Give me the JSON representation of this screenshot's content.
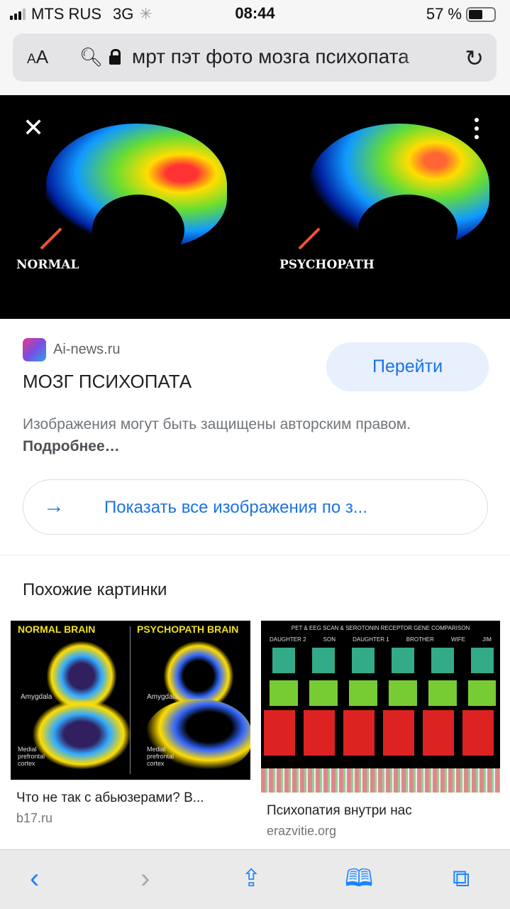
{
  "status": {
    "carrier": "MTS RUS",
    "network": "3G",
    "time": "08:44",
    "battery": "57 %",
    "battery_level": 0.57
  },
  "urlbar": {
    "aa_small": "A",
    "aa_large": "A",
    "query": "мрт пэт фото мозга психопата"
  },
  "hero": {
    "label_left": "NORMAL",
    "label_right": "PSYCHOPATH"
  },
  "result": {
    "source": "Ai-news.ru",
    "title": "МОЗГ ПСИХОПАТА",
    "goto": "Перейти",
    "copyright": "Изображения могут быть защищены авторским правом.",
    "more": "Подробнее…",
    "show_all": "Показать все изображения по з..."
  },
  "similar": {
    "heading": "Похожие картинки",
    "items": [
      {
        "title": "Что не так с абьюзерами? В...",
        "source": "b17.ru",
        "img_labels": [
          "NORMAL BRAIN",
          "PSYCHOPATH BRAIN",
          "Amygdala",
          "Medial prefrontal cortex"
        ]
      },
      {
        "title": "Психопатия внутри нас",
        "source": "erazvitie.org",
        "img_labels": [
          "PET & EEG SCAN & SEROTONIN RECEPTOR GENE COMPARISON",
          "DAUGHTER 2",
          "SON",
          "DAUGHTER 1",
          "BROTHER",
          "WIFE",
          "JIM"
        ]
      }
    ]
  },
  "colors": {
    "accent": "#1a73e8",
    "toolbar_icon": "#1a84ff"
  }
}
